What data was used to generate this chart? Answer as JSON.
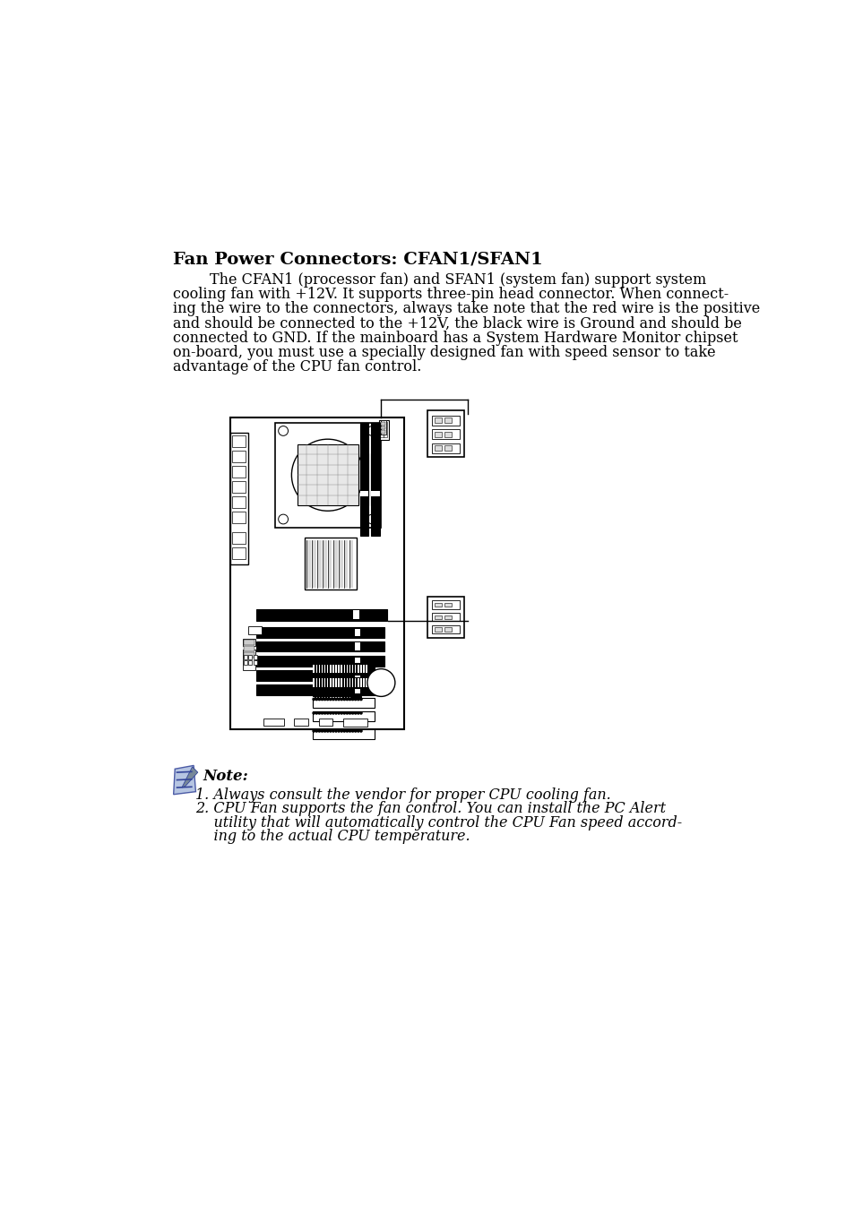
{
  "title": "Fan Power Connectors: CFAN1/SFAN1",
  "body_lines": [
    "        The CFAN1 (processor fan) and SFAN1 (system fan) support system",
    "cooling fan with +12V. It supports three-pin head connector. When connect-",
    "ing the wire to the connectors, always take note that the red wire is the positive",
    "and should be connected to the +12V, the black wire is Ground and should be",
    "connected to GND. If the mainboard has a System Hardware Monitor chipset",
    "on-board, you must use a specially designed fan with speed sensor to take",
    "advantage of the CPU fan control."
  ],
  "note_label": "Note:",
  "note_lines": [
    "1. Always consult the vendor for proper CPU cooling fan.",
    "2. CPU Fan supports the fan control. You can install the PC Alert",
    "    utility that will automatically control the CPU Fan speed accord-",
    "    ing to the actual CPU temperature."
  ],
  "bg_color": "#ffffff",
  "text_color": "#000000",
  "title_fontsize": 14,
  "body_fontsize": 11.5,
  "note_fontsize": 11.5
}
